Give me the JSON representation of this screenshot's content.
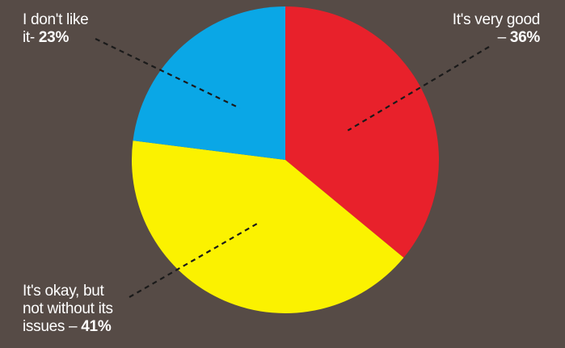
{
  "chart_data": {
    "type": "pie",
    "slices": [
      {
        "label": "It's very good",
        "value": 36,
        "value_text": "36%",
        "color": "#e8212b"
      },
      {
        "label": "It's okay, but not without its issues",
        "value": 41,
        "value_text": "41%",
        "color": "#fbf200"
      },
      {
        "label": "I don't like it",
        "value": 23,
        "value_text": "23%",
        "color": "#0aa7e6"
      }
    ],
    "start": "12 o'clock",
    "direction": "clockwise"
  },
  "labels": {
    "good_line1": "It's very good",
    "good_line2": "– ",
    "good_value": "36%",
    "dislike_line1": "I don't like",
    "dislike_line2": "it- ",
    "dislike_value": "23%",
    "okay_line1": "It's okay, but",
    "okay_line2": "not without its",
    "okay_line3": "issues – ",
    "okay_value": "41%"
  },
  "leader_color": "#1a1a1a"
}
